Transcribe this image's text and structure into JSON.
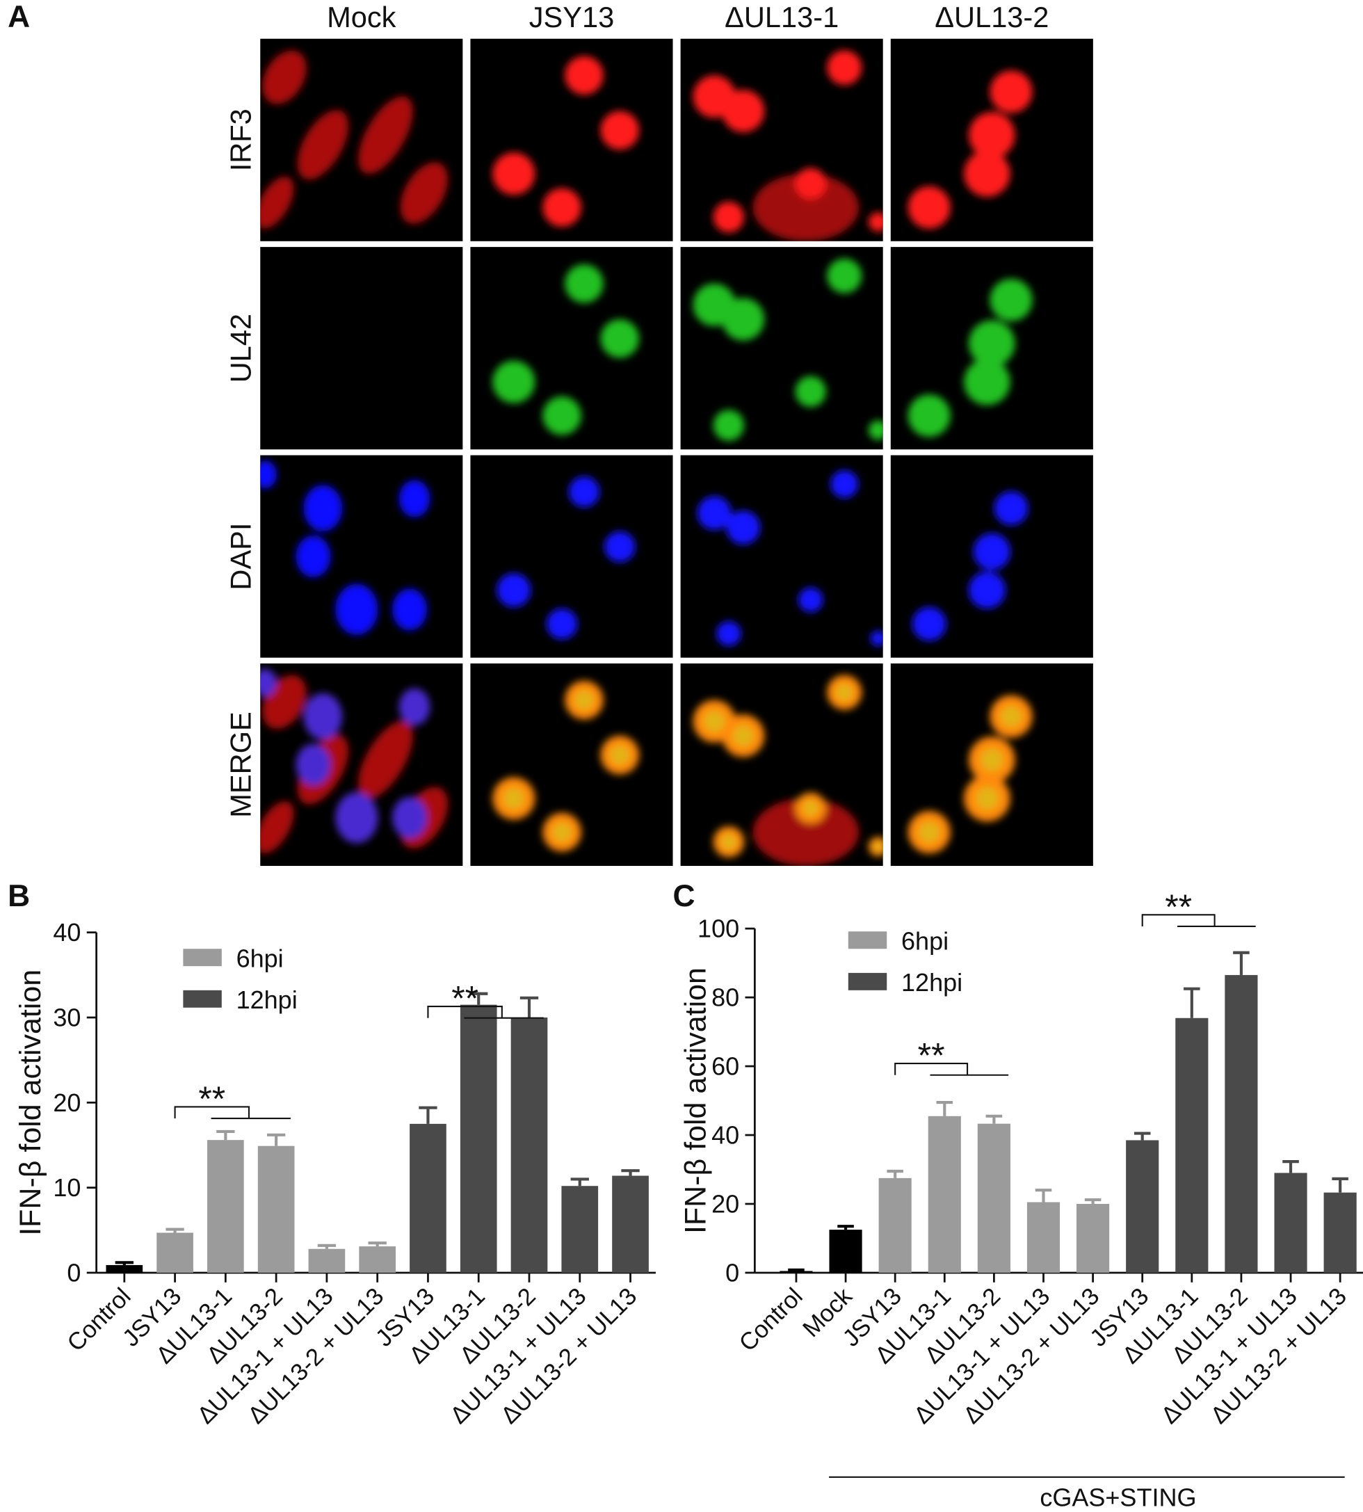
{
  "figure": {
    "panel_labels": [
      "A",
      "B",
      "C"
    ],
    "columns": [
      "Mock",
      "JSY13",
      "ΔUL13-1",
      "ΔUL13-2"
    ],
    "rows": [
      "IRF3",
      "UL42",
      "DAPI",
      "MERGE"
    ]
  },
  "chart_data": [
    {
      "type": "bar",
      "ylabel": "IFN-β fold activation",
      "categories": [
        "Control",
        "JSY13",
        "ΔUL13-1",
        "ΔUL13-2",
        "ΔUL13-1 + UL13",
        "ΔUL13-2 + UL13",
        "JSY13",
        "ΔUL13-1",
        "ΔUL13-2",
        "ΔUL13-1 + UL13",
        "ΔUL13-2 + UL13"
      ],
      "values": [
        0.9,
        4.7,
        15.6,
        14.9,
        2.8,
        3.1,
        17.5,
        31.5,
        30.0,
        10.2,
        11.4
      ],
      "errors": [
        0.3,
        0.4,
        1.0,
        1.3,
        0.4,
        0.4,
        1.9,
        1.3,
        2.3,
        0.8,
        0.6
      ],
      "colors": [
        "#000000",
        "#9b9b9b",
        "#9b9b9b",
        "#9b9b9b",
        "#9b9b9b",
        "#9b9b9b",
        "#4a4a4a",
        "#4a4a4a",
        "#4a4a4a",
        "#4a4a4a",
        "#4a4a4a"
      ],
      "legend": [
        {
          "name": "6hpi",
          "color": "#9b9b9b"
        },
        {
          "name": "12hpi",
          "color": "#4a4a4a"
        }
      ],
      "annotations": [
        "**",
        "**"
      ],
      "ylim": [
        0,
        40
      ],
      "yticks": [
        0,
        10,
        20,
        30,
        40
      ]
    },
    {
      "type": "bar",
      "ylabel": "IFN-β fold activation",
      "xlabel": "cGAS+STING",
      "categories": [
        "Control",
        "Mock",
        "JSY13",
        "ΔUL13-1",
        "ΔUL13-2",
        "ΔUL13-1 + UL13",
        "ΔUL13-2 + UL13",
        "JSY13",
        "ΔUL13-1",
        "ΔUL13-2",
        "ΔUL13-1 + UL13",
        "ΔUL13-2 + UL13"
      ],
      "values": [
        0.5,
        12.5,
        27.5,
        45.5,
        43.3,
        20.5,
        20.0,
        38.5,
        74.0,
        86.5,
        29.0,
        23.3
      ],
      "errors": [
        0.3,
        1.0,
        2.0,
        4.0,
        2.2,
        3.5,
        1.2,
        2.0,
        8.5,
        6.5,
        3.3,
        4.0
      ],
      "colors": [
        "#000000",
        "#000000",
        "#9b9b9b",
        "#9b9b9b",
        "#9b9b9b",
        "#9b9b9b",
        "#9b9b9b",
        "#4a4a4a",
        "#4a4a4a",
        "#4a4a4a",
        "#4a4a4a",
        "#4a4a4a"
      ],
      "legend": [
        {
          "name": "6hpi",
          "color": "#9b9b9b"
        },
        {
          "name": "12hpi",
          "color": "#4a4a4a"
        }
      ],
      "annotations": [
        "**",
        "**"
      ],
      "ylim": [
        0,
        100
      ],
      "yticks": [
        0,
        20,
        40,
        60,
        80,
        100
      ]
    }
  ]
}
